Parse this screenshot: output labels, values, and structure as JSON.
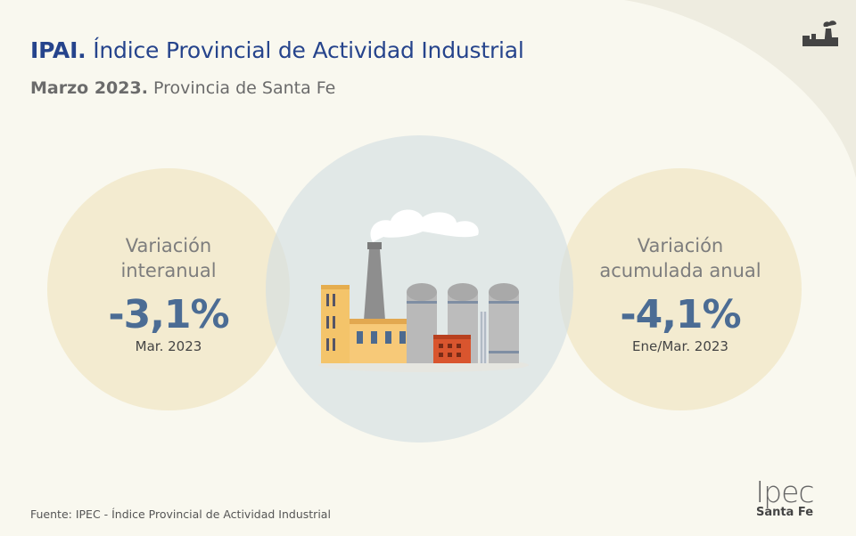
{
  "header": {
    "title_bold": "IPAI.",
    "title_rest": "Índice Provincial de Actividad Industrial",
    "subtitle_bold": "Marzo 2023.",
    "subtitle_rest": "Provincia de Santa Fe"
  },
  "stats": {
    "left": {
      "label_line1": "Variación",
      "label_line2": "interanual",
      "value": "-3,1%",
      "period": "Mar. 2023"
    },
    "right": {
      "label_line1": "Variación",
      "label_line2": "acumulada anual",
      "value": "-4,1%",
      "period": "Ene/Mar. 2023"
    }
  },
  "footer": {
    "source": "Fuente: IPEC - Índice Provincial de Actividad Industrial"
  },
  "logo": {
    "name": "Ipec",
    "region": "Santa Fe"
  },
  "icons": {
    "corner": "factory-icon",
    "center": "factory-illustration-icon"
  },
  "colors": {
    "title": "#26448c",
    "value": "#4b6c94",
    "background": "#f9f8ef",
    "left_circle": "#f0e4be",
    "mid_circle": "#d4dee2"
  }
}
